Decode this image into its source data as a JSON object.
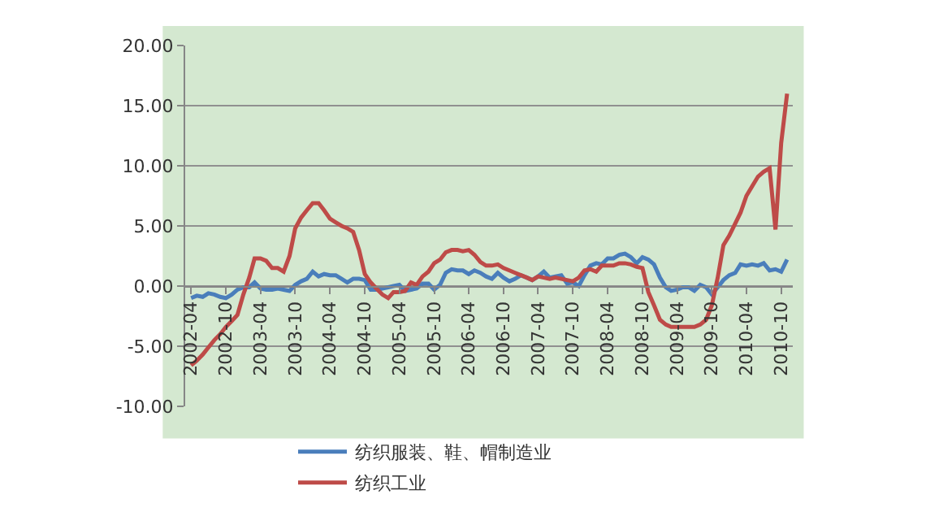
{
  "chart_data": {
    "type": "line",
    "x": [
      "2002-04",
      "2002-05",
      "2002-06",
      "2002-07",
      "2002-08",
      "2002-09",
      "2002-10",
      "2002-11",
      "2002-12",
      "2003-01",
      "2003-02",
      "2003-03",
      "2003-04",
      "2003-05",
      "2003-06",
      "2003-07",
      "2003-08",
      "2003-09",
      "2003-10",
      "2003-11",
      "2003-12",
      "2004-01",
      "2004-02",
      "2004-03",
      "2004-04",
      "2004-05",
      "2004-06",
      "2004-07",
      "2004-08",
      "2004-09",
      "2004-10",
      "2004-11",
      "2004-12",
      "2005-01",
      "2005-02",
      "2005-03",
      "2005-04",
      "2005-05",
      "2005-06",
      "2005-07",
      "2005-08",
      "2005-09",
      "2005-10",
      "2005-11",
      "2005-12",
      "2006-01",
      "2006-02",
      "2006-03",
      "2006-04",
      "2006-05",
      "2006-06",
      "2006-07",
      "2006-08",
      "2006-09",
      "2006-10",
      "2006-11",
      "2006-12",
      "2007-01",
      "2007-02",
      "2007-03",
      "2007-04",
      "2007-05",
      "2007-06",
      "2007-07",
      "2007-08",
      "2007-09",
      "2007-10",
      "2007-11",
      "2007-12",
      "2008-01",
      "2008-02",
      "2008-03",
      "2008-04",
      "2008-05",
      "2008-06",
      "2008-07",
      "2008-08",
      "2008-09",
      "2008-10",
      "2008-11",
      "2008-12",
      "2009-01",
      "2009-02",
      "2009-03",
      "2009-04",
      "2009-05",
      "2009-06",
      "2009-07",
      "2009-08",
      "2009-09",
      "2009-10",
      "2009-11",
      "2009-12",
      "2010-01",
      "2010-02",
      "2010-03",
      "2010-04",
      "2010-05",
      "2010-06",
      "2010-07",
      "2010-08",
      "2010-09",
      "2010-10",
      "2010-11"
    ],
    "series": [
      {
        "name": "纺织服装、鞋、帽制造业",
        "color": "#4a7ebb",
        "values": [
          -1.0,
          -0.8,
          -0.9,
          -0.6,
          -0.7,
          -0.9,
          -1.0,
          -0.7,
          -0.3,
          -0.1,
          -0.1,
          0.3,
          -0.2,
          -0.3,
          -0.3,
          -0.2,
          -0.3,
          -0.4,
          0.1,
          0.4,
          0.6,
          1.2,
          0.8,
          1.0,
          0.9,
          0.9,
          0.6,
          0.3,
          0.6,
          0.6,
          0.5,
          -0.3,
          -0.3,
          -0.2,
          -0.1,
          0.0,
          0.1,
          -0.4,
          -0.3,
          -0.2,
          0.2,
          0.2,
          -0.3,
          0.1,
          1.1,
          1.4,
          1.3,
          1.3,
          1.0,
          1.3,
          1.1,
          0.8,
          0.6,
          1.1,
          0.7,
          0.4,
          0.6,
          0.9,
          0.7,
          0.5,
          0.8,
          1.2,
          0.7,
          0.8,
          0.9,
          0.2,
          0.3,
          0.0,
          0.9,
          1.7,
          1.9,
          1.8,
          2.3,
          2.3,
          2.6,
          2.7,
          2.4,
          1.9,
          2.4,
          2.2,
          1.8,
          0.7,
          -0.1,
          -0.4,
          -0.3,
          -0.1,
          -0.1,
          -0.4,
          0.1,
          -0.1,
          -0.7,
          -0.1,
          0.5,
          0.9,
          1.1,
          1.8,
          1.7,
          1.8,
          1.7,
          1.9,
          1.3,
          1.4,
          1.2,
          2.2
        ]
      },
      {
        "name": "纺织工业",
        "color": "#be4b48",
        "values": [
          -6.6,
          -6.2,
          -5.7,
          -5.1,
          -4.5,
          -4.0,
          -3.4,
          -2.9,
          -2.4,
          -0.7,
          0.7,
          2.3,
          2.3,
          2.1,
          1.5,
          1.5,
          1.2,
          2.5,
          4.8,
          5.7,
          6.3,
          6.9,
          6.9,
          6.3,
          5.6,
          5.3,
          5.0,
          4.8,
          4.5,
          3.0,
          1.0,
          0.3,
          -0.2,
          -0.7,
          -1.0,
          -0.5,
          -0.5,
          -0.4,
          0.3,
          0.1,
          0.8,
          1.2,
          1.9,
          2.2,
          2.8,
          3.0,
          3.0,
          2.9,
          3.0,
          2.6,
          2.0,
          1.7,
          1.7,
          1.8,
          1.5,
          1.3,
          1.1,
          0.9,
          0.7,
          0.5,
          0.8,
          0.7,
          0.6,
          0.7,
          0.6,
          0.5,
          0.4,
          0.7,
          1.3,
          1.4,
          1.2,
          1.7,
          1.7,
          1.7,
          1.9,
          1.9,
          1.8,
          1.6,
          1.5,
          -0.5,
          -1.6,
          -2.8,
          -3.2,
          -3.4,
          -3.4,
          -3.4,
          -3.4,
          -3.4,
          -3.2,
          -2.8,
          -1.6,
          0.7,
          3.4,
          4.2,
          5.2,
          6.1,
          7.5,
          8.3,
          9.1,
          9.5,
          9.8,
          4.7,
          11.9,
          16.0
        ]
      }
    ],
    "xlim": [
      "2002-03",
      "2010-12"
    ],
    "xticks": [
      "2002-04",
      "2002-10",
      "2003-04",
      "2003-10",
      "2004-04",
      "2004-10",
      "2005-04",
      "2005-10",
      "2006-04",
      "2006-10",
      "2007-04",
      "2007-10",
      "2008-04",
      "2008-10",
      "2009-04",
      "2009-10",
      "2010-04",
      "2010-10"
    ],
    "ylim": [
      -10,
      20
    ],
    "yticks": [
      {
        "value": -10,
        "label": "-10.00"
      },
      {
        "value": -5,
        "label": "-5.00"
      },
      {
        "value": 0,
        "label": "0.00"
      },
      {
        "value": 5,
        "label": "5.00"
      },
      {
        "value": 10,
        "label": "10.00"
      },
      {
        "value": 15,
        "label": "15.00"
      },
      {
        "value": 20,
        "label": "20.00"
      }
    ],
    "grid": "y",
    "legend": "bottom",
    "marker": "none",
    "line_style": "solid"
  }
}
